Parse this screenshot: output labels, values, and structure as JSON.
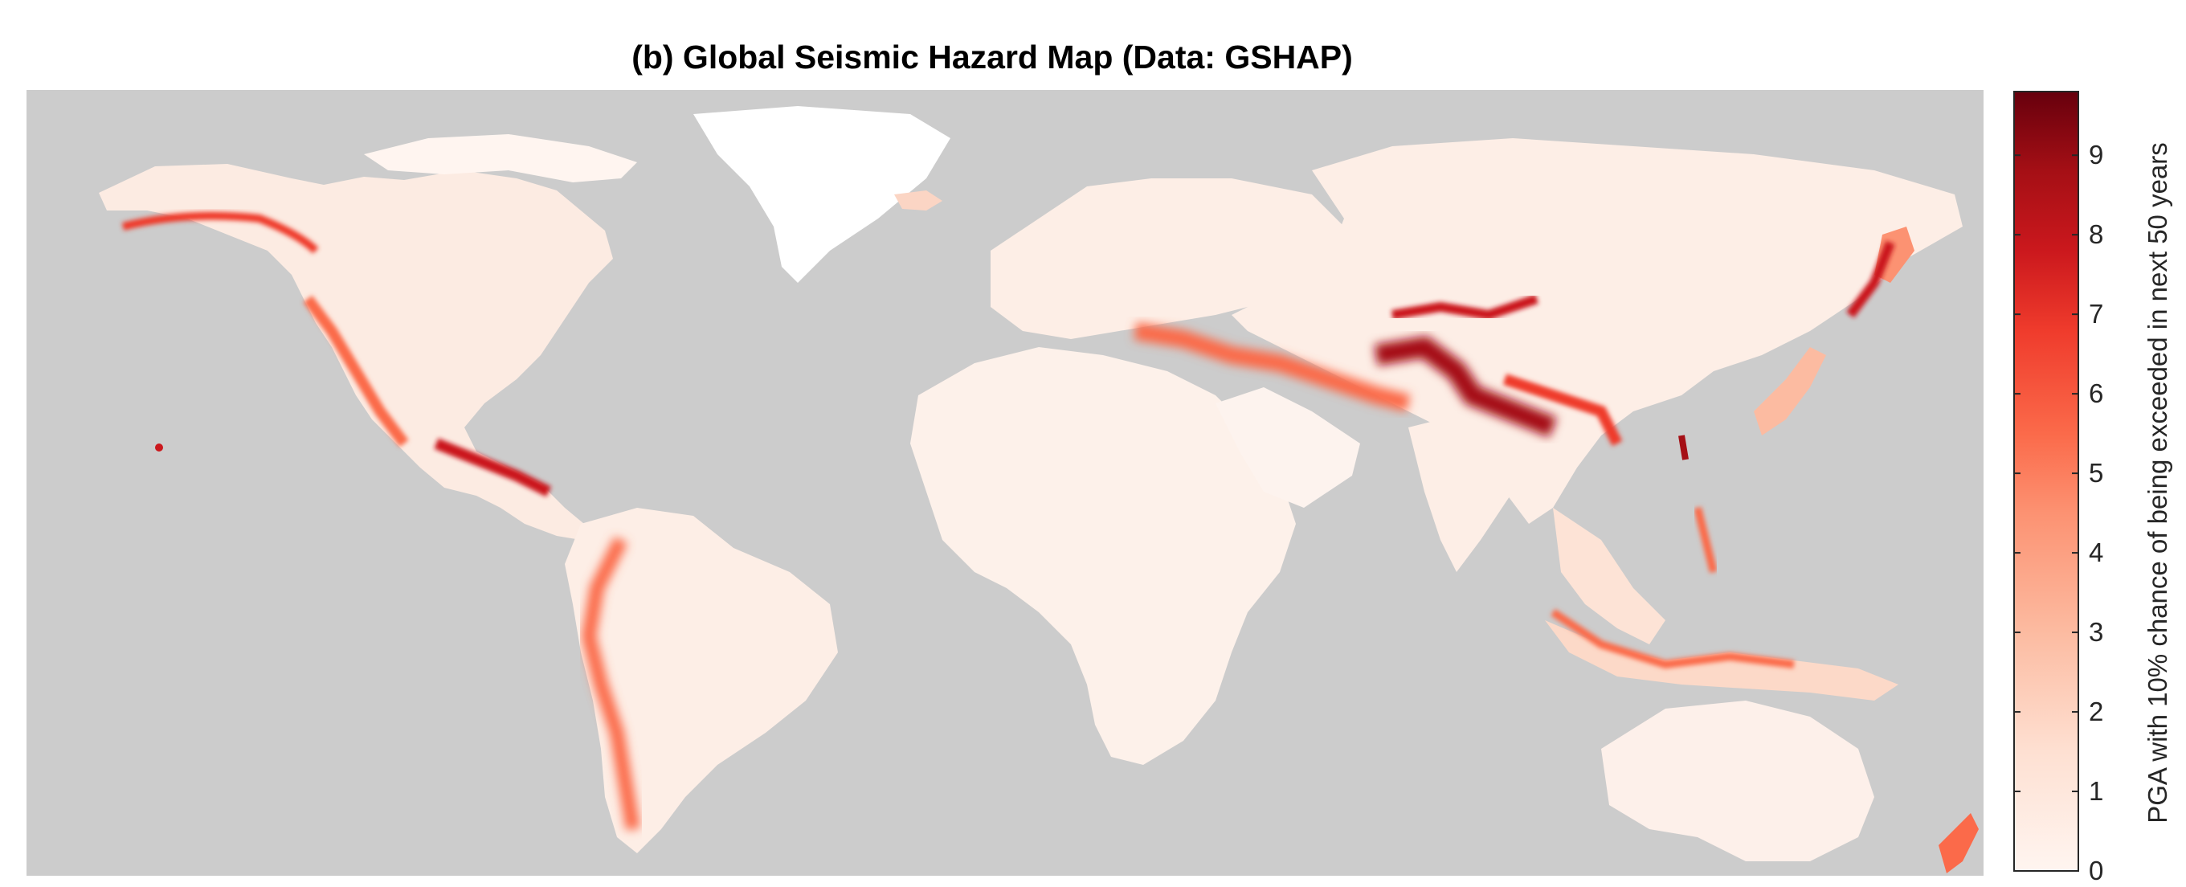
{
  "title": "(b) Global Seismic Hazard Map (Data: GSHAP)",
  "colors": {
    "ocean": "#cccccc",
    "land_low": "#fff5f0",
    "land_mid": "#fb6a4a",
    "land_high": "#67000d"
  },
  "colorbar": {
    "label": "PGA with 10% chance of being exceeded in next 50 years",
    "min": 0,
    "max": 9.8,
    "ticks": [
      "0",
      "1",
      "2",
      "3",
      "4",
      "5",
      "6",
      "7",
      "8",
      "9"
    ],
    "tick_values": [
      0,
      1,
      2,
      3,
      4,
      5,
      6,
      7,
      8,
      9
    ],
    "stops": [
      {
        "value": 0,
        "color": "#fff5f0"
      },
      {
        "value": 1.5,
        "color": "#fee0d2"
      },
      {
        "value": 3,
        "color": "#fcbba1"
      },
      {
        "value": 4.5,
        "color": "#fc9272"
      },
      {
        "value": 5.5,
        "color": "#fb6a4a"
      },
      {
        "value": 6.8,
        "color": "#ef3b2c"
      },
      {
        "value": 7.8,
        "color": "#cb181d"
      },
      {
        "value": 8.8,
        "color": "#a50f15"
      },
      {
        "value": 9.8,
        "color": "#67000d"
      }
    ]
  }
}
